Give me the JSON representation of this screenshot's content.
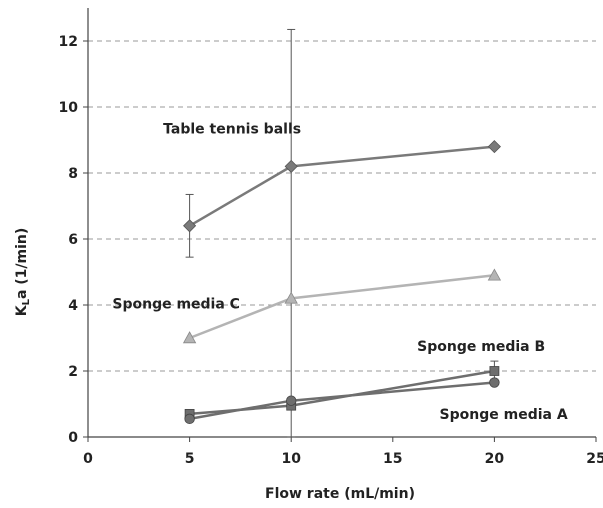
{
  "chart_data": {
    "type": "line",
    "title": "",
    "xlabel": "Flow rate (mL/min)",
    "ylabel": "K_La (1/min)",
    "xlim": [
      0,
      25
    ],
    "ylim": [
      0,
      13
    ],
    "xticks": [
      0,
      5,
      10,
      15,
      20,
      25
    ],
    "yticks": [
      0,
      2,
      4,
      6,
      8,
      10,
      12
    ],
    "grid": "horizontal-dashed",
    "legend": "none",
    "series": [
      {
        "name": "Table tennis balls",
        "marker": "diamond",
        "color": "#7a7a7a",
        "x": [
          5,
          10,
          20
        ],
        "y": [
          6.4,
          8.2,
          8.8
        ],
        "err_low": [
          5.45,
          0,
          null
        ],
        "err_high": [
          7.35,
          12.35,
          null
        ]
      },
      {
        "name": "Sponge media C",
        "marker": "triangle",
        "color": "#b4b4b4",
        "x": [
          5,
          10,
          20
        ],
        "y": [
          3.0,
          4.2,
          4.9
        ]
      },
      {
        "name": "Sponge media B",
        "marker": "square",
        "color": "#6e6e6e",
        "x": [
          5,
          10,
          20
        ],
        "y": [
          0.7,
          0.95,
          2.0
        ],
        "err_low": [
          null,
          null,
          1.75
        ],
        "err_high": [
          null,
          null,
          2.3
        ]
      },
      {
        "name": "Sponge media A",
        "marker": "circle",
        "color": "#6e6e6e",
        "x": [
          5,
          10,
          20
        ],
        "y": [
          0.55,
          1.1,
          1.65
        ]
      }
    ],
    "annotations": [
      {
        "text": "Table tennis balls",
        "x": 3.7,
        "y": 9.2
      },
      {
        "text": "Sponge media C",
        "x": 1.2,
        "y": 3.9
      },
      {
        "text": "Sponge media B",
        "x": 16.2,
        "y": 2.6
      },
      {
        "text": "Sponge media A",
        "x": 17.3,
        "y": 0.55
      }
    ]
  }
}
